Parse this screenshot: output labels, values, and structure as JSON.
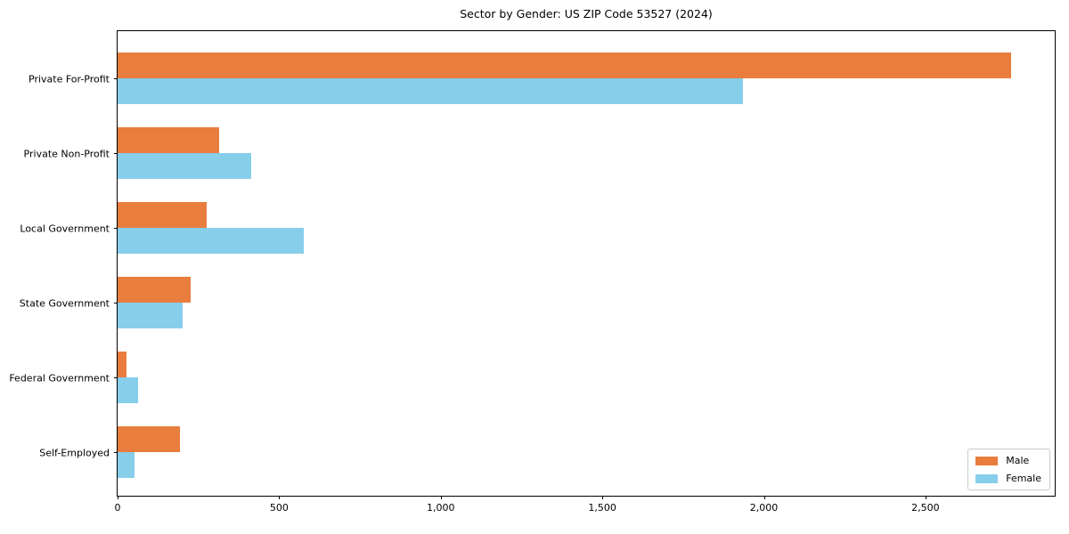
{
  "title": "Sector by Gender: US ZIP Code 53527 (2024)",
  "colors": {
    "male": "#e87d3e",
    "female": "#87ceeb",
    "axis": "#000000",
    "background": "#ffffff",
    "legend_border": "#cccccc"
  },
  "chart_data": {
    "type": "bar",
    "orientation": "horizontal",
    "title": "Sector by Gender: US ZIP Code 53527 (2024)",
    "categories": [
      "Private For-Profit",
      "Private Non-Profit",
      "Local Government",
      "State Government",
      "Federal Government",
      "Self-Employed"
    ],
    "series": [
      {
        "name": "Male",
        "color": "#e87d3e",
        "values": [
          2765,
          314,
          275,
          226,
          28,
          193
        ]
      },
      {
        "name": "Female",
        "color": "#87ceeb",
        "values": [
          1935,
          413,
          575,
          201,
          63,
          52
        ]
      }
    ],
    "xlabel": "",
    "ylabel": "",
    "xlim": [
      0,
      2900
    ],
    "x_ticks": [
      0,
      500,
      1000,
      1500,
      2000,
      2500
    ],
    "x_tick_labels": [
      "0",
      "500",
      "1,000",
      "1,500",
      "2,000",
      "2,500"
    ],
    "legend_position": "lower right",
    "grid": false
  }
}
